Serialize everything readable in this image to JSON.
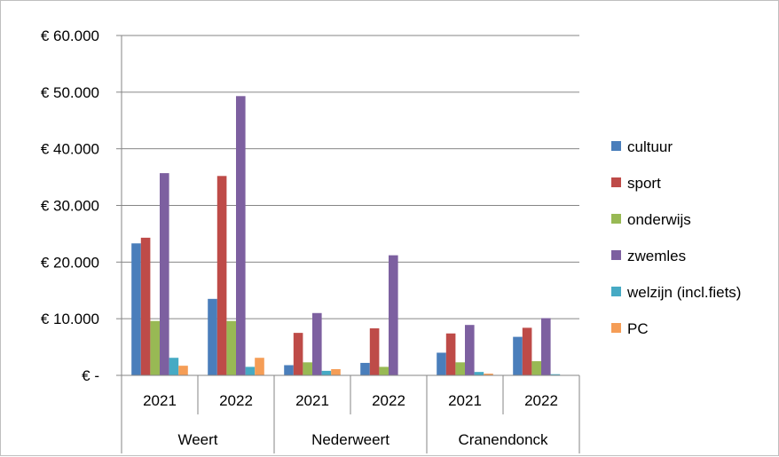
{
  "chart_data": {
    "type": "bar",
    "title": "",
    "xlabel": "",
    "ylabel": "",
    "ylim": [
      0,
      60000
    ],
    "y_ticks": [
      0,
      10000,
      20000,
      30000,
      40000,
      50000,
      60000
    ],
    "y_tick_labels": [
      "€ -",
      "€ 10.000",
      "€ 20.000",
      "€ 30.000",
      "€ 40.000",
      "€ 50.000",
      "€ 60.000"
    ],
    "grid": true,
    "legend_position": "right",
    "groups": [
      "Weert",
      "Nederweert",
      "Cranendonck"
    ],
    "categories": [
      "2021",
      "2022",
      "2021",
      "2022",
      "2021",
      "2022"
    ],
    "series": [
      {
        "name": "cultuur",
        "color": "#4a7ebb",
        "values": [
          23300,
          13500,
          1800,
          2200,
          4000,
          6800
        ]
      },
      {
        "name": "sport",
        "color": "#be4b48",
        "values": [
          24300,
          35200,
          7500,
          8300,
          7400,
          8400
        ]
      },
      {
        "name": "onderwijs",
        "color": "#98b954",
        "values": [
          9600,
          9600,
          2300,
          1500,
          2300,
          2500
        ]
      },
      {
        "name": "zwemles",
        "color": "#7d60a0",
        "values": [
          35700,
          49300,
          11000,
          21200,
          8900,
          10100
        ]
      },
      {
        "name": "welzijn (incl.fiets)",
        "color": "#46aac4",
        "values": [
          3100,
          1500,
          800,
          0,
          600,
          200
        ]
      },
      {
        "name": "PC",
        "color": "#f59d56",
        "values": [
          1700,
          3100,
          1100,
          0,
          300,
          0
        ]
      }
    ]
  }
}
